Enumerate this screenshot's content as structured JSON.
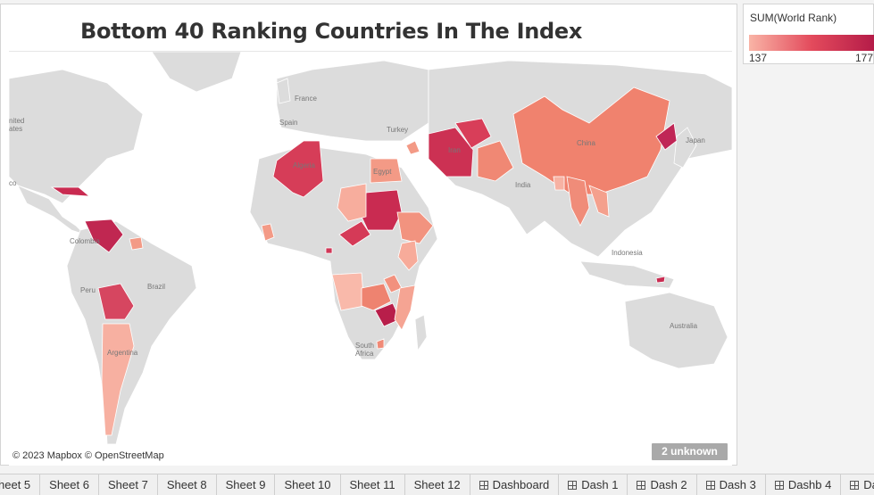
{
  "dashboard": {
    "title": "Bottom 40 Ranking Countries In The Index",
    "attribution": "© 2023 Mapbox © OpenStreetMap",
    "unknown_badge": "2 unknown"
  },
  "legend": {
    "title": "SUM(World Rank)",
    "min": "137",
    "max": "177",
    "color_low": "#f9b4a6",
    "color_high": "#b41b48"
  },
  "map_labels": {
    "united_states": "nited\nates",
    "france": "France",
    "spain": "Spain",
    "turkey": "Turkey",
    "algeria": "Algeria",
    "egypt": "Egypt",
    "iran": "Iran",
    "china": "China",
    "japan": "Japan",
    "india": "India",
    "colombia": "Colombia",
    "peru": "Peru",
    "brazil": "Brazil",
    "argentina": "Argentina",
    "indonesia": "Indonesia",
    "australia": "Australia",
    "south_africa": "South\nAfrica",
    "mexico": "co"
  },
  "tabs": [
    {
      "label": "heet 5",
      "type": "sheet"
    },
    {
      "label": "Sheet 6",
      "type": "sheet"
    },
    {
      "label": "Sheet 7",
      "type": "sheet"
    },
    {
      "label": "Sheet 8",
      "type": "sheet"
    },
    {
      "label": "Sheet 9",
      "type": "sheet"
    },
    {
      "label": "Sheet 10",
      "type": "sheet"
    },
    {
      "label": "Sheet 11",
      "type": "sheet"
    },
    {
      "label": "Sheet 12",
      "type": "sheet"
    },
    {
      "label": "Dashboard",
      "type": "dashboard"
    },
    {
      "label": "Dash 1",
      "type": "dashboard"
    },
    {
      "label": "Dash 2",
      "type": "dashboard"
    },
    {
      "label": "Dash 3",
      "type": "dashboard"
    },
    {
      "label": "Dashb 4",
      "type": "dashboard"
    },
    {
      "label": "Dashb",
      "type": "dashboard"
    }
  ]
}
